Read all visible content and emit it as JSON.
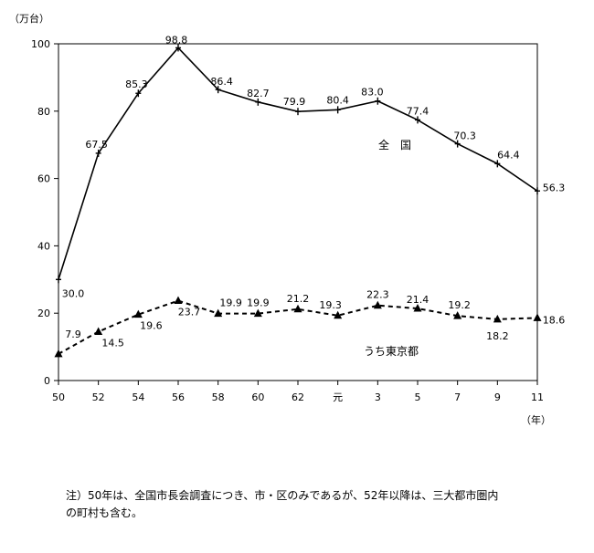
{
  "chart_data": {
    "type": "line",
    "y_unit": "（万台）",
    "x_unit": "（年）",
    "ylim": [
      0,
      100
    ],
    "yticks": [
      0,
      20,
      40,
      60,
      80,
      100
    ],
    "categories": [
      "50",
      "52",
      "54",
      "56",
      "58",
      "60",
      "62",
      "元",
      "3",
      "5",
      "7",
      "9",
      "11"
    ],
    "series": [
      {
        "name": "全　国",
        "values": [
          30.0,
          67.5,
          85.3,
          98.8,
          86.4,
          82.7,
          79.9,
          80.4,
          83.0,
          77.4,
          70.3,
          64.4,
          56.3
        ],
        "labels": [
          "30.0",
          "67.5",
          "85.3",
          "98.8",
          "86.4",
          "82.7",
          "79.9",
          "80.4",
          "83.0",
          "77.4",
          "70.3",
          "64.4",
          "56.3"
        ],
        "style": "solid",
        "marker": "tick",
        "color": "#000000"
      },
      {
        "name": "うち東京都",
        "values": [
          7.9,
          14.5,
          19.6,
          23.7,
          19.9,
          19.9,
          21.2,
          19.3,
          22.3,
          21.4,
          19.2,
          18.2,
          18.6
        ],
        "labels": [
          "7.9",
          "14.5",
          "19.6",
          "23.7",
          "19.9",
          "19.9",
          "21.2",
          "19.3",
          "22.3",
          "21.4",
          "19.2",
          "18.2",
          "18.6"
        ],
        "style": "dashed",
        "marker": "triangle",
        "color": "#000000"
      }
    ],
    "grid": false
  },
  "note": {
    "line1": "注）50年は、全国市長会調査につき、市・区のみであるが、52年以降は、三大都市圏内",
    "line2": "の町村も含む。"
  }
}
